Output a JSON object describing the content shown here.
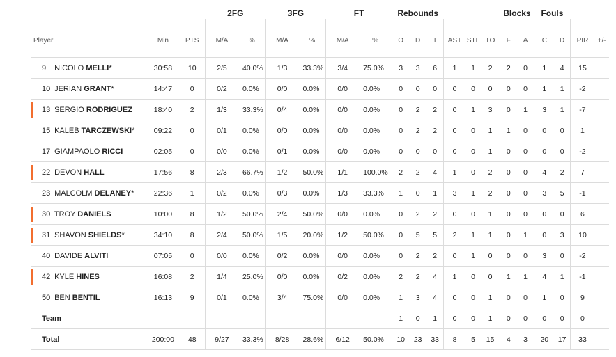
{
  "groups": {
    "fg2": "2FG",
    "fg3": "3FG",
    "ft": "FT",
    "rebounds": "Rebounds",
    "blocks": "Blocks",
    "fouls": "Fouls"
  },
  "columns": {
    "player": "Player",
    "min": "Min",
    "pts": "PTS",
    "fg2_ma": "M/A",
    "fg2_pct": "%",
    "fg3_ma": "M/A",
    "fg3_pct": "%",
    "ft_ma": "M/A",
    "ft_pct": "%",
    "reb_o": "O",
    "reb_d": "D",
    "reb_t": "T",
    "ast": "AST",
    "stl": "STL",
    "to": "TO",
    "blk_f": "F",
    "blk_a": "A",
    "foul_c": "C",
    "foul_d": "D",
    "pir": "PIR",
    "pm": "+/-"
  },
  "marker_color": "#f26e2f",
  "players": [
    {
      "num": "9",
      "first": "NICOLO",
      "last": "MELLI",
      "star": "*",
      "marked": false,
      "min": "30:58",
      "pts": "10",
      "fg2": "2/5",
      "fg2p": "40.0%",
      "fg3": "1/3",
      "fg3p": "33.3%",
      "ft": "3/4",
      "ftp": "75.0%",
      "o": "3",
      "d": "3",
      "t": "6",
      "ast": "1",
      "stl": "1",
      "to": "2",
      "bf": "2",
      "ba": "0",
      "fc": "1",
      "fd": "4",
      "pir": "15",
      "pm": ""
    },
    {
      "num": "10",
      "first": "JERIAN",
      "last": "GRANT",
      "star": "*",
      "marked": false,
      "min": "14:47",
      "pts": "0",
      "fg2": "0/2",
      "fg2p": "0.0%",
      "fg3": "0/0",
      "fg3p": "0.0%",
      "ft": "0/0",
      "ftp": "0.0%",
      "o": "0",
      "d": "0",
      "t": "0",
      "ast": "0",
      "stl": "0",
      "to": "0",
      "bf": "0",
      "ba": "0",
      "fc": "1",
      "fd": "1",
      "pir": "-2",
      "pm": ""
    },
    {
      "num": "13",
      "first": "SERGIO",
      "last": "RODRIGUEZ",
      "star": "",
      "marked": true,
      "min": "18:40",
      "pts": "2",
      "fg2": "1/3",
      "fg2p": "33.3%",
      "fg3": "0/4",
      "fg3p": "0.0%",
      "ft": "0/0",
      "ftp": "0.0%",
      "o": "0",
      "d": "2",
      "t": "2",
      "ast": "0",
      "stl": "1",
      "to": "3",
      "bf": "0",
      "ba": "1",
      "fc": "3",
      "fd": "1",
      "pir": "-7",
      "pm": ""
    },
    {
      "num": "15",
      "first": "KALEB",
      "last": "TARCZEWSKI",
      "star": "*",
      "marked": false,
      "min": "09:22",
      "pts": "0",
      "fg2": "0/1",
      "fg2p": "0.0%",
      "fg3": "0/0",
      "fg3p": "0.0%",
      "ft": "0/0",
      "ftp": "0.0%",
      "o": "0",
      "d": "2",
      "t": "2",
      "ast": "0",
      "stl": "0",
      "to": "1",
      "bf": "1",
      "ba": "0",
      "fc": "0",
      "fd": "0",
      "pir": "1",
      "pm": ""
    },
    {
      "num": "17",
      "first": "GIAMPAOLO",
      "last": "RICCI",
      "star": "",
      "marked": false,
      "min": "02:05",
      "pts": "0",
      "fg2": "0/0",
      "fg2p": "0.0%",
      "fg3": "0/1",
      "fg3p": "0.0%",
      "ft": "0/0",
      "ftp": "0.0%",
      "o": "0",
      "d": "0",
      "t": "0",
      "ast": "0",
      "stl": "0",
      "to": "1",
      "bf": "0",
      "ba": "0",
      "fc": "0",
      "fd": "0",
      "pir": "-2",
      "pm": ""
    },
    {
      "num": "22",
      "first": "DEVON",
      "last": "HALL",
      "star": "",
      "marked": true,
      "min": "17:56",
      "pts": "8",
      "fg2": "2/3",
      "fg2p": "66.7%",
      "fg3": "1/2",
      "fg3p": "50.0%",
      "ft": "1/1",
      "ftp": "100.0%",
      "o": "2",
      "d": "2",
      "t": "4",
      "ast": "1",
      "stl": "0",
      "to": "2",
      "bf": "0",
      "ba": "0",
      "fc": "4",
      "fd": "2",
      "pir": "7",
      "pm": ""
    },
    {
      "num": "23",
      "first": "MALCOLM",
      "last": "DELANEY",
      "star": "*",
      "marked": false,
      "min": "22:36",
      "pts": "1",
      "fg2": "0/2",
      "fg2p": "0.0%",
      "fg3": "0/3",
      "fg3p": "0.0%",
      "ft": "1/3",
      "ftp": "33.3%",
      "o": "1",
      "d": "0",
      "t": "1",
      "ast": "3",
      "stl": "1",
      "to": "2",
      "bf": "0",
      "ba": "0",
      "fc": "3",
      "fd": "5",
      "pir": "-1",
      "pm": ""
    },
    {
      "num": "30",
      "first": "TROY",
      "last": "DANIELS",
      "star": "",
      "marked": true,
      "min": "10:00",
      "pts": "8",
      "fg2": "1/2",
      "fg2p": "50.0%",
      "fg3": "2/4",
      "fg3p": "50.0%",
      "ft": "0/0",
      "ftp": "0.0%",
      "o": "0",
      "d": "2",
      "t": "2",
      "ast": "0",
      "stl": "0",
      "to": "1",
      "bf": "0",
      "ba": "0",
      "fc": "0",
      "fd": "0",
      "pir": "6",
      "pm": ""
    },
    {
      "num": "31",
      "first": "SHAVON",
      "last": "SHIELDS",
      "star": "*",
      "marked": true,
      "min": "34:10",
      "pts": "8",
      "fg2": "2/4",
      "fg2p": "50.0%",
      "fg3": "1/5",
      "fg3p": "20.0%",
      "ft": "1/2",
      "ftp": "50.0%",
      "o": "0",
      "d": "5",
      "t": "5",
      "ast": "2",
      "stl": "1",
      "to": "1",
      "bf": "0",
      "ba": "1",
      "fc": "0",
      "fd": "3",
      "pir": "10",
      "pm": ""
    },
    {
      "num": "40",
      "first": "DAVIDE",
      "last": "ALVITI",
      "star": "",
      "marked": false,
      "min": "07:05",
      "pts": "0",
      "fg2": "0/0",
      "fg2p": "0.0%",
      "fg3": "0/2",
      "fg3p": "0.0%",
      "ft": "0/0",
      "ftp": "0.0%",
      "o": "0",
      "d": "2",
      "t": "2",
      "ast": "0",
      "stl": "1",
      "to": "0",
      "bf": "0",
      "ba": "0",
      "fc": "3",
      "fd": "0",
      "pir": "-2",
      "pm": ""
    },
    {
      "num": "42",
      "first": "KYLE",
      "last": "HINES",
      "star": "",
      "marked": true,
      "min": "16:08",
      "pts": "2",
      "fg2": "1/4",
      "fg2p": "25.0%",
      "fg3": "0/0",
      "fg3p": "0.0%",
      "ft": "0/2",
      "ftp": "0.0%",
      "o": "2",
      "d": "2",
      "t": "4",
      "ast": "1",
      "stl": "0",
      "to": "0",
      "bf": "1",
      "ba": "1",
      "fc": "4",
      "fd": "1",
      "pir": "-1",
      "pm": ""
    },
    {
      "num": "50",
      "first": "BEN",
      "last": "BENTIL",
      "star": "",
      "marked": false,
      "min": "16:13",
      "pts": "9",
      "fg2": "0/1",
      "fg2p": "0.0%",
      "fg3": "3/4",
      "fg3p": "75.0%",
      "ft": "0/0",
      "ftp": "0.0%",
      "o": "1",
      "d": "3",
      "t": "4",
      "ast": "0",
      "stl": "0",
      "to": "1",
      "bf": "0",
      "ba": "0",
      "fc": "1",
      "fd": "0",
      "pir": "9",
      "pm": ""
    }
  ],
  "team": {
    "label": "Team",
    "o": "1",
    "d": "0",
    "t": "1",
    "ast": "0",
    "stl": "0",
    "to": "1",
    "bf": "0",
    "ba": "0",
    "fc": "0",
    "fd": "0",
    "pir": "0"
  },
  "total": {
    "label": "Total",
    "min": "200:00",
    "pts": "48",
    "fg2": "9/27",
    "fg2p": "33.3%",
    "fg3": "8/28",
    "fg3p": "28.6%",
    "ft": "6/12",
    "ftp": "50.0%",
    "o": "10",
    "d": "23",
    "t": "33",
    "ast": "8",
    "stl": "5",
    "to": "15",
    "bf": "4",
    "ba": "3",
    "fc": "20",
    "fd": "17",
    "pir": "33"
  }
}
